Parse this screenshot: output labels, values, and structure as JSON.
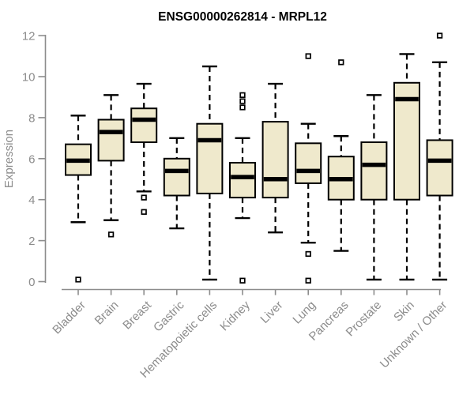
{
  "chart_data": {
    "type": "boxplot",
    "title": "ENSG00000262814 - MRPL12",
    "xlabel": "",
    "ylabel": "Expression",
    "ylim": [
      0,
      12
    ],
    "yticks": [
      0,
      2,
      4,
      6,
      8,
      10,
      12
    ],
    "grid": false,
    "legend": false,
    "categories": [
      "Bladder",
      "Brain",
      "Breast",
      "Gastric",
      "Hematopoietic cells",
      "Kidney",
      "Liver",
      "Lung",
      "Pancreas",
      "Prostate",
      "Skin",
      "Unknown / Other"
    ],
    "boxes": [
      {
        "category": "Bladder",
        "whisker_low": 2.9,
        "q1": 5.2,
        "median": 5.9,
        "q3": 6.7,
        "whisker_high": 8.1,
        "outliers": [
          0.1
        ]
      },
      {
        "category": "Brain",
        "whisker_low": 3.0,
        "q1": 5.9,
        "median": 7.3,
        "q3": 7.9,
        "whisker_high": 9.1,
        "outliers": [
          2.3
        ]
      },
      {
        "category": "Breast",
        "whisker_low": 4.4,
        "q1": 6.8,
        "median": 7.9,
        "q3": 8.45,
        "whisker_high": 9.65,
        "outliers": [
          4.1,
          3.4
        ]
      },
      {
        "category": "Gastric",
        "whisker_low": 2.6,
        "q1": 4.2,
        "median": 5.4,
        "q3": 6.0,
        "whisker_high": 7.0,
        "outliers": []
      },
      {
        "category": "Hematopoietic cells",
        "whisker_low": 0.1,
        "q1": 4.3,
        "median": 6.9,
        "q3": 7.7,
        "whisker_high": 10.5,
        "outliers": []
      },
      {
        "category": "Kidney",
        "whisker_low": 3.1,
        "q1": 4.1,
        "median": 5.1,
        "q3": 5.8,
        "whisker_high": 7.0,
        "outliers": [
          9.1,
          8.8,
          8.5,
          0.05
        ]
      },
      {
        "category": "Liver",
        "whisker_low": 2.4,
        "q1": 4.1,
        "median": 5.0,
        "q3": 7.8,
        "whisker_high": 9.65,
        "outliers": []
      },
      {
        "category": "Lung",
        "whisker_low": 1.9,
        "q1": 4.8,
        "median": 5.4,
        "q3": 6.75,
        "whisker_high": 7.7,
        "outliers": [
          11.0,
          1.35,
          0.05
        ]
      },
      {
        "category": "Pancreas",
        "whisker_low": 1.5,
        "q1": 4.0,
        "median": 5.0,
        "q3": 6.1,
        "whisker_high": 7.1,
        "outliers": [
          10.7
        ]
      },
      {
        "category": "Prostate",
        "whisker_low": 0.1,
        "q1": 4.0,
        "median": 5.7,
        "q3": 6.8,
        "whisker_high": 9.1,
        "outliers": []
      },
      {
        "category": "Skin",
        "whisker_low": 0.1,
        "q1": 4.0,
        "median": 8.9,
        "q3": 9.7,
        "whisker_high": 11.1,
        "outliers": []
      },
      {
        "category": "Unknown / Other",
        "whisker_low": 0.1,
        "q1": 4.2,
        "median": 5.9,
        "q3": 6.9,
        "whisker_high": 10.7,
        "outliers": [
          12.0
        ]
      }
    ],
    "colors": {
      "box_fill": "#efe9cc",
      "box_border": "#000000",
      "median": "#000000",
      "whisker": "#000000",
      "outlier": "#000000",
      "axis_line": "#8c8c8c",
      "axis_text": "#8c8c8c",
      "title_text": "#000000",
      "background": "#ffffff"
    }
  }
}
